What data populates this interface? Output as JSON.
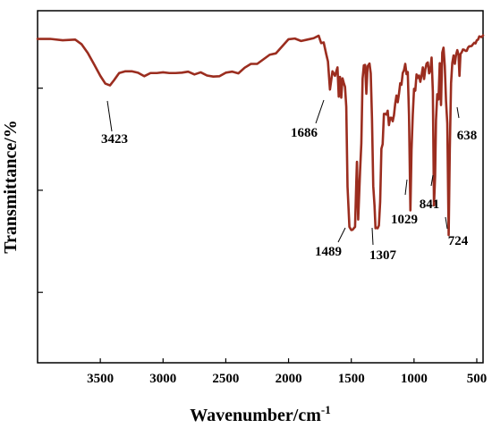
{
  "chart_data": {
    "type": "line",
    "title": "",
    "xlabel": "Wavenumber/cm",
    "xlabel_superscript": "-1",
    "ylabel": "Transmittance/%",
    "xlim": [
      4000,
      450
    ],
    "x_reversed": true,
    "ylim": [
      0,
      100
    ],
    "y_ticks_labeled": false,
    "x_ticks": [
      3500,
      3000,
      2500,
      2000,
      1500,
      1000,
      500
    ],
    "x_tick_labels": [
      "3500",
      "3000",
      "2500",
      "2000",
      "1500",
      "1000",
      "500"
    ],
    "line_color": "#9b2d1f",
    "grid": false,
    "legend": "none",
    "series": [
      {
        "x": [
          4000,
          3900,
          3800,
          3700,
          3650,
          3600,
          3550,
          3500,
          3460,
          3423,
          3390,
          3350,
          3300,
          3250,
          3200,
          3150,
          3100,
          3050,
          3000,
          2950,
          2900,
          2850,
          2800,
          2750,
          2700,
          2650,
          2600,
          2550,
          2500,
          2450,
          2400,
          2350,
          2300,
          2250,
          2200,
          2150,
          2100,
          2050,
          2000,
          1950,
          1900,
          1850,
          1800,
          1760,
          1740,
          1720,
          1700,
          1686,
          1670,
          1650,
          1630,
          1610,
          1600,
          1590,
          1580,
          1570,
          1560,
          1550,
          1540,
          1530,
          1515,
          1500,
          1489,
          1480,
          1470,
          1460,
          1455,
          1445,
          1430,
          1420,
          1410,
          1400,
          1390,
          1380,
          1370,
          1355,
          1345,
          1335,
          1325,
          1315,
          1307,
          1300,
          1290,
          1280,
          1270,
          1260,
          1250,
          1240,
          1230,
          1220,
          1210,
          1200,
          1190,
          1180,
          1170,
          1160,
          1150,
          1140,
          1130,
          1120,
          1110,
          1100,
          1090,
          1080,
          1070,
          1060,
          1050,
          1040,
          1029,
          1020,
          1010,
          1000,
          990,
          980,
          970,
          960,
          950,
          940,
          930,
          920,
          910,
          900,
          890,
          880,
          870,
          860,
          850,
          841,
          832,
          825,
          815,
          805,
          795,
          785,
          775,
          765,
          755,
          745,
          735,
          724,
          715,
          705,
          695,
          685,
          675,
          665,
          655,
          645,
          638,
          630,
          620,
          610,
          600,
          590,
          580,
          570,
          560,
          550,
          540,
          530,
          520,
          510,
          500,
          490,
          480,
          470,
          460,
          450
        ],
        "y": [
          92,
          92,
          91.6,
          91.8,
          90.5,
          88,
          84.8,
          81.5,
          79.3,
          78.8,
          80.3,
          82.3,
          82.8,
          82.8,
          82.4,
          81.4,
          82.3,
          82.3,
          82.5,
          82.3,
          82.3,
          82.4,
          82.7,
          81.9,
          82.5,
          81.6,
          81.3,
          81.4,
          82.4,
          82.7,
          82.2,
          83.8,
          84.9,
          84.9,
          86.2,
          87.5,
          87.9,
          89.9,
          91.9,
          92.1,
          91.4,
          91.8,
          92.2,
          92.9,
          90.8,
          91,
          87.7,
          85.6,
          77.6,
          82.8,
          81.5,
          83.9,
          75.6,
          81.2,
          75.3,
          80.8,
          79.5,
          78.4,
          72.7,
          50,
          38.6,
          37.7,
          37.8,
          38.2,
          38.6,
          51.4,
          57.1,
          40.7,
          54.5,
          62.3,
          80.7,
          84.5,
          84.6,
          76.4,
          84.2,
          85,
          82.2,
          69.3,
          50.2,
          44.7,
          38.2,
          38.4,
          38.2,
          39,
          45.7,
          60.8,
          62.1,
          70.7,
          70.7,
          70.5,
          71.6,
          67.5,
          69.6,
          69.6,
          68.6,
          70.3,
          73.6,
          75.9,
          74,
          76.4,
          79.4,
          79,
          82.3,
          83.1,
          84.9,
          82,
          82.6,
          70.2,
          43.3,
          60.4,
          70.5,
          77.8,
          77.3,
          81.9,
          80.9,
          81.6,
          79.8,
          81.6,
          83.9,
          80.6,
          83.4,
          85,
          85.3,
          82.2,
          83,
          86.7,
          76.9,
          44.7,
          53.1,
          68.9,
          76.3,
          74.8,
          85.1,
          73.2,
          88.1,
          89.5,
          84.3,
          74.3,
          68,
          36.3,
          60.6,
          79.4,
          85.2,
          87.3,
          84.9,
          87.5,
          88.8,
          87.3,
          81.5,
          87.7,
          88.2,
          89,
          88.9,
          88.6,
          88.6,
          89.5,
          89.9,
          89.9,
          90,
          90.5,
          90.9,
          90.7,
          91.6,
          91.8,
          92.7,
          92.6,
          92.5,
          93
        ]
      }
    ],
    "annotations": [
      {
        "text": "3423",
        "x": 3423,
        "y": 78.8
      },
      {
        "text": "1686",
        "x": 1686,
        "y": 85.6
      },
      {
        "text": "1489",
        "x": 1489,
        "y": 37.8
      },
      {
        "text": "1307",
        "x": 1307,
        "y": 38.2
      },
      {
        "text": "1029",
        "x": 1029,
        "y": 43.3
      },
      {
        "text": "841",
        "x": 841,
        "y": 44.7
      },
      {
        "text": "724",
        "x": 724,
        "y": 36.3
      },
      {
        "text": "638",
        "x": 638,
        "y": 81.5
      }
    ]
  }
}
